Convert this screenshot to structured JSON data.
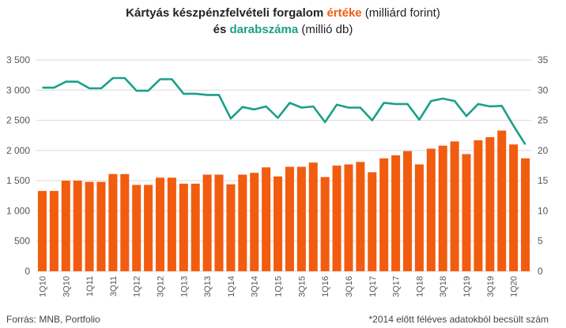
{
  "title": {
    "line1_pre": "Kártyás készpénzfelvételi forgalom ",
    "line1_hl": "értéke",
    "line1_post": " (milliárd forint)",
    "line2_pre": "és ",
    "line2_hl": "darabszáma",
    "line2_post": " (millió db)"
  },
  "footer": {
    "source": "Forrás: MNB, Portfolio",
    "note": "*2014 előtt féléves adatokból becsült szám"
  },
  "colors": {
    "bars": "#f25c0f",
    "line": "#1aa088",
    "grid": "#d9d9d9",
    "axis_text": "#555555"
  },
  "chart_data": {
    "type": "bar+line",
    "categories": [
      "1Q10",
      "2Q10",
      "3Q10",
      "4Q10",
      "1Q11",
      "2Q11",
      "3Q11",
      "4Q11",
      "1Q12",
      "2Q12",
      "3Q12",
      "4Q12",
      "1Q13",
      "2Q13",
      "3Q13",
      "4Q13",
      "1Q14",
      "2Q14",
      "3Q14",
      "4Q14",
      "1Q15",
      "2Q15",
      "3Q15",
      "4Q15",
      "1Q16",
      "2Q16",
      "3Q16",
      "4Q16",
      "1Q17",
      "2Q17",
      "3Q17",
      "4Q17",
      "1Q18",
      "2Q18",
      "3Q18",
      "4Q18",
      "1Q19",
      "2Q19",
      "3Q19",
      "4Q19",
      "1Q20",
      "2Q20"
    ],
    "tick_labels": [
      "1Q10",
      "3Q10",
      "1Q11",
      "3Q11",
      "1Q12",
      "3Q12",
      "1Q13",
      "3Q13",
      "1Q14",
      "3Q14",
      "1Q15",
      "3Q15",
      "1Q16",
      "3Q16",
      "1Q17",
      "3Q17",
      "1Q18",
      "3Q18",
      "1Q19",
      "3Q19",
      "1Q20"
    ],
    "series": [
      {
        "name": "értéke",
        "type": "bar",
        "axis": "left",
        "values": [
          1330,
          1330,
          1500,
          1500,
          1480,
          1480,
          1610,
          1610,
          1430,
          1430,
          1550,
          1550,
          1450,
          1450,
          1600,
          1600,
          1440,
          1600,
          1630,
          1720,
          1570,
          1730,
          1730,
          1800,
          1560,
          1750,
          1770,
          1810,
          1640,
          1870,
          1920,
          1990,
          1770,
          2030,
          2080,
          2150,
          1940,
          2170,
          2220,
          2330,
          2100,
          1870
        ]
      },
      {
        "name": "darabszáma",
        "type": "line",
        "axis": "right",
        "values": [
          30.4,
          30.4,
          31.4,
          31.4,
          30.3,
          30.3,
          32.0,
          32.0,
          29.9,
          29.9,
          31.8,
          31.8,
          29.4,
          29.4,
          29.2,
          29.2,
          25.3,
          27.2,
          26.8,
          27.3,
          25.4,
          27.9,
          27.1,
          27.3,
          24.7,
          27.6,
          27.1,
          27.1,
          25.0,
          27.9,
          27.7,
          27.7,
          25.1,
          28.2,
          28.6,
          28.2,
          25.7,
          27.7,
          27.3,
          27.4,
          24.1,
          21.0
        ]
      }
    ],
    "y_left": {
      "min": 0,
      "max": 3500,
      "ticks": [
        "0",
        "500",
        "1 000",
        "1 500",
        "2 000",
        "2 500",
        "3 000",
        "3 500"
      ]
    },
    "y_right": {
      "min": 0,
      "max": 35,
      "ticks": [
        "0",
        "5",
        "10",
        "15",
        "20",
        "25",
        "30",
        "35"
      ]
    },
    "grid": true
  }
}
